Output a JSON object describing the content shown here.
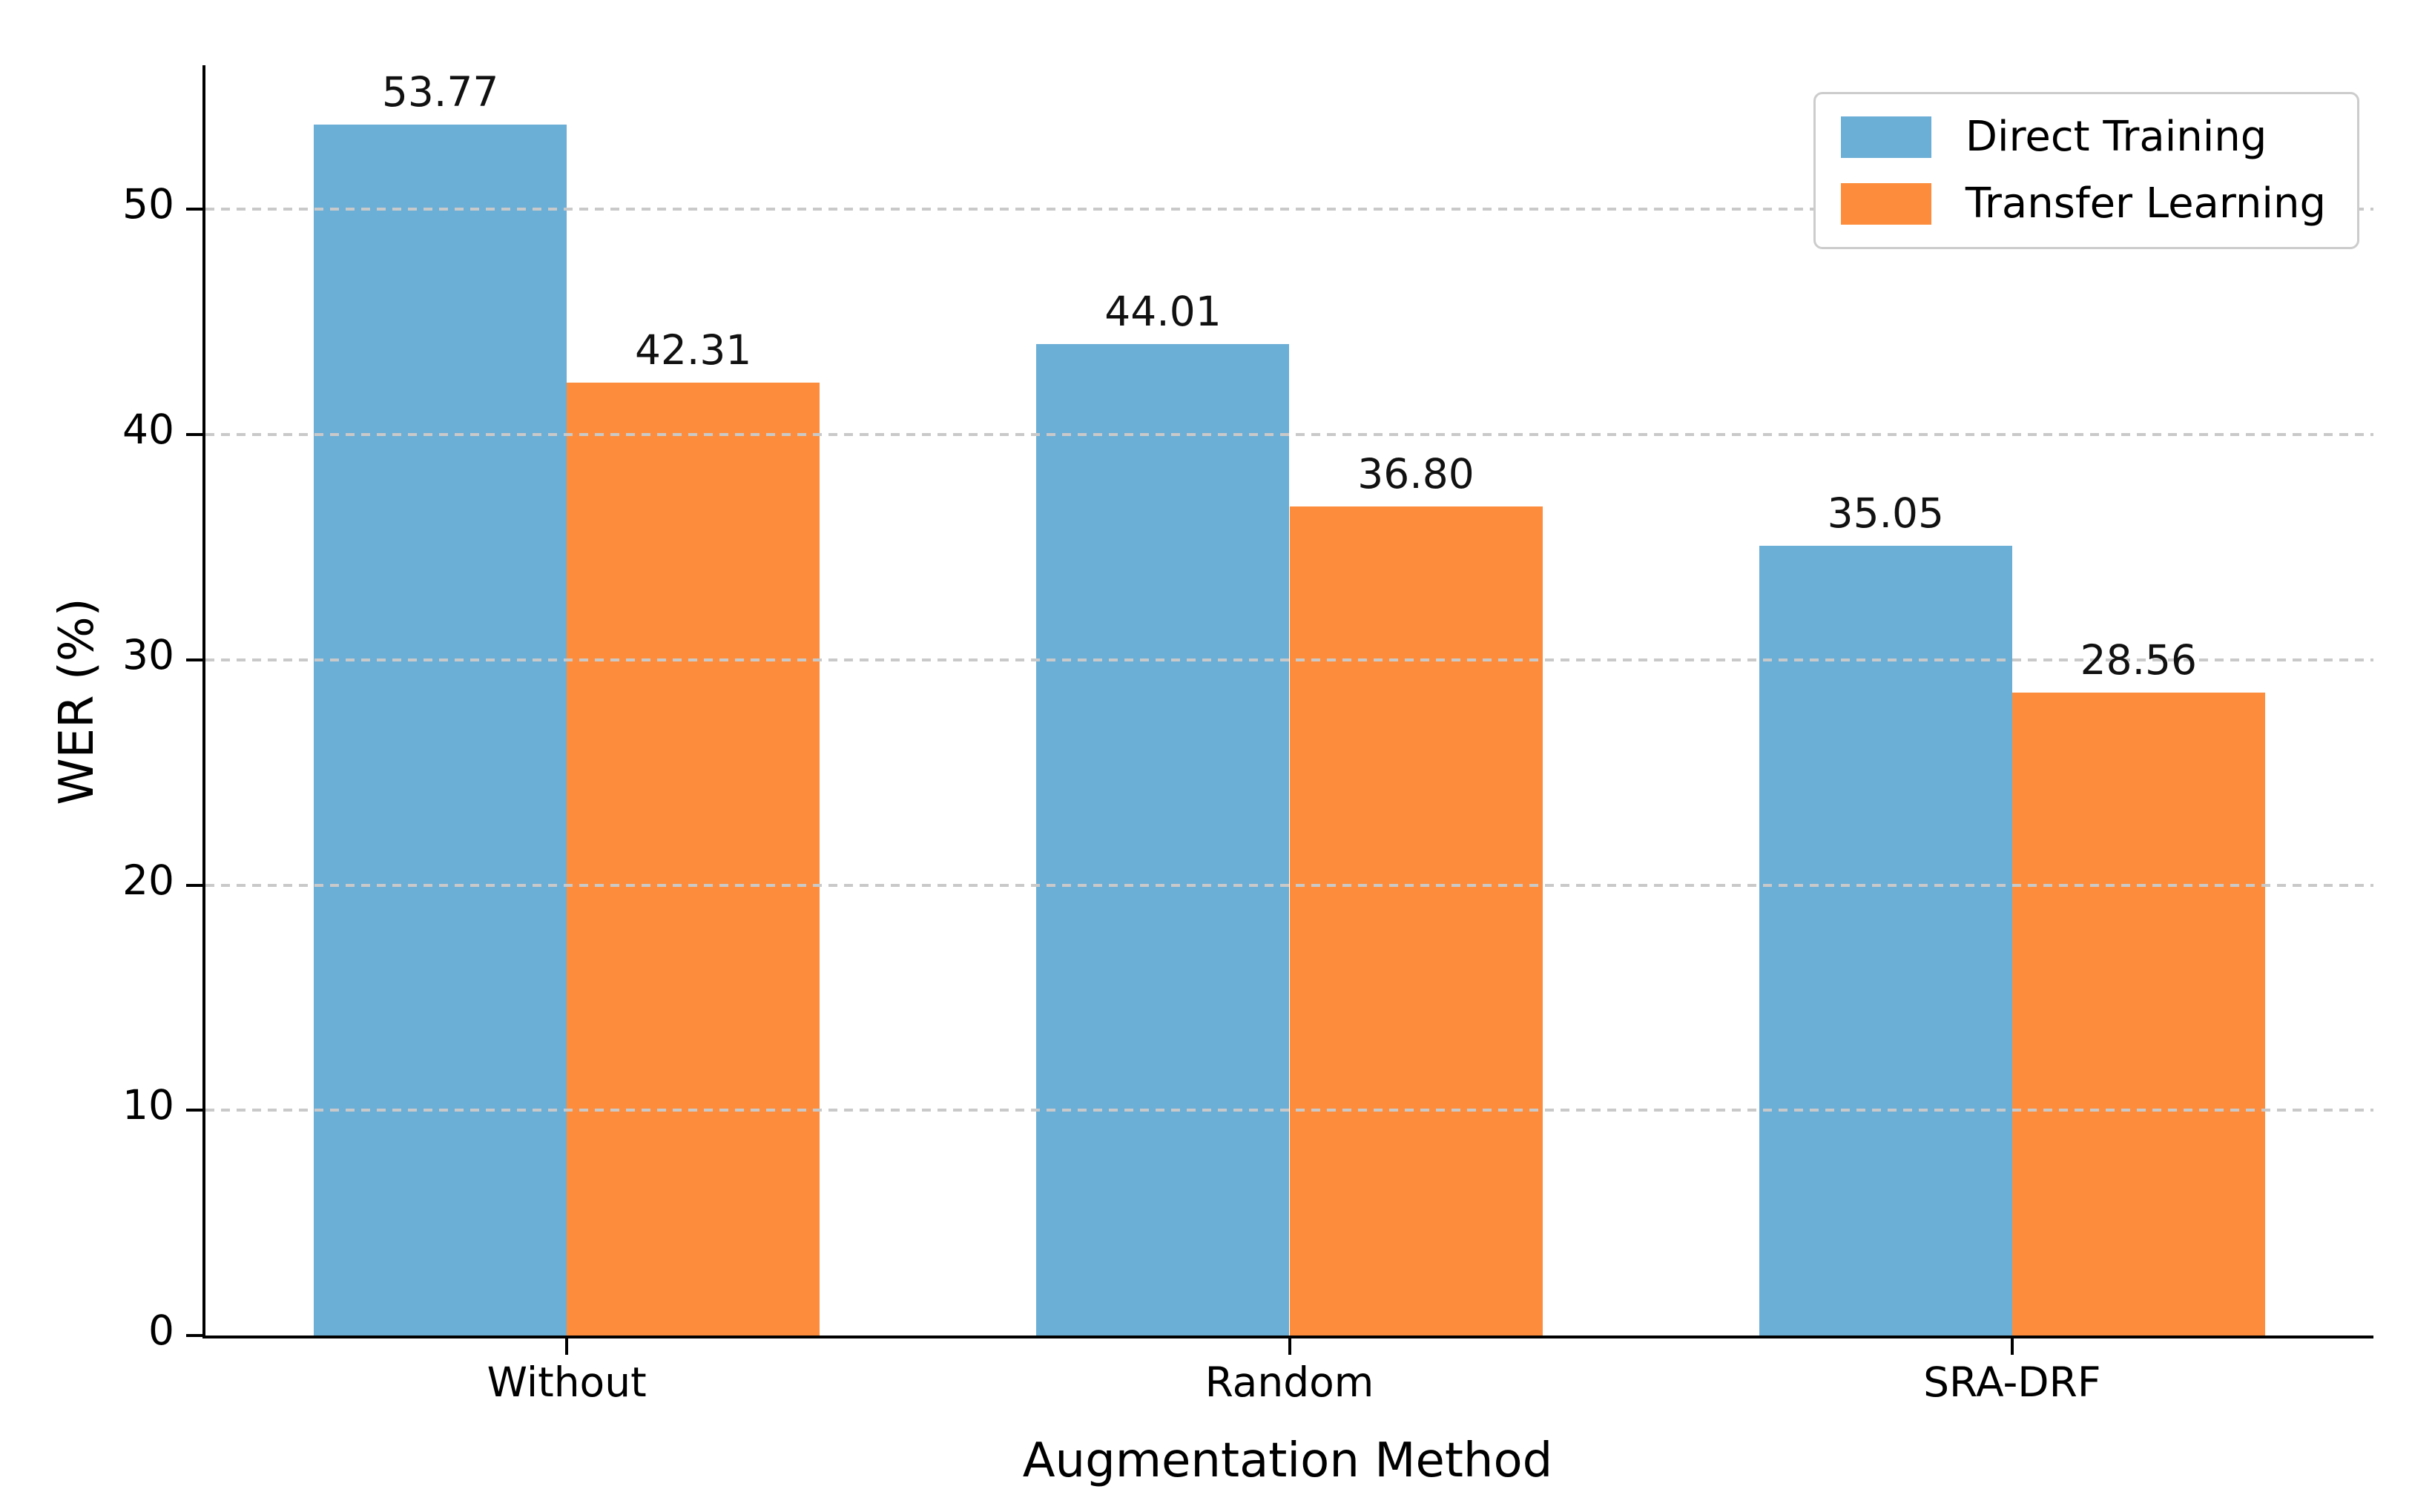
{
  "chart_data": {
    "type": "bar",
    "categories": [
      "Without",
      "Random",
      "SRA-DRF"
    ],
    "series": [
      {
        "name": "Direct Training",
        "color": "#6baed6",
        "values": [
          53.77,
          44.01,
          35.05
        ],
        "value_labels": [
          "53.77",
          "44.01",
          "35.05"
        ]
      },
      {
        "name": "Transfer Learning",
        "color": "#fd8d3c",
        "values": [
          42.31,
          36.8,
          28.56
        ],
        "value_labels": [
          "42.31",
          "36.80",
          "28.56"
        ]
      }
    ],
    "title": "",
    "xlabel": "Augmentation Method",
    "ylabel": "WER (%)",
    "yticks": [
      0,
      10,
      20,
      30,
      40,
      50
    ],
    "ytick_labels": [
      "0",
      "10",
      "20",
      "30",
      "40",
      "50"
    ],
    "ylim": [
      0,
      56.4
    ],
    "bar_group_width": 0.35,
    "grid": "horizontal-dashed",
    "grid_color": "#c9c9c9",
    "legend_position": "upper-right"
  }
}
